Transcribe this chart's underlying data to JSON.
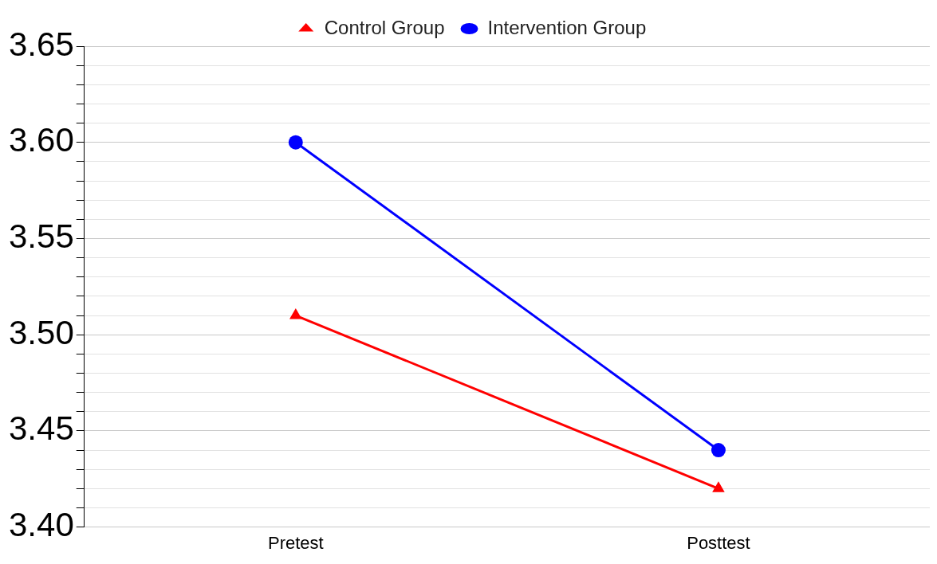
{
  "chart_data": {
    "type": "line",
    "categories": [
      "Pretest",
      "Posttest"
    ],
    "series": [
      {
        "name": "Control Group",
        "color": "#ff0000",
        "marker": "triangle",
        "values": [
          3.51,
          3.42
        ]
      },
      {
        "name": "Intervention Group",
        "color": "#0000ff",
        "marker": "circle",
        "values": [
          3.6,
          3.44
        ]
      }
    ],
    "ylim": [
      3.4,
      3.65
    ],
    "yticks": [
      {
        "value": 3.4,
        "label": "3.40"
      },
      {
        "value": 3.41,
        "label": null
      },
      {
        "value": 3.42,
        "label": null
      },
      {
        "value": 3.43,
        "label": null
      },
      {
        "value": 3.44,
        "label": null
      },
      {
        "value": 3.45,
        "label": "3.45"
      },
      {
        "value": 3.46,
        "label": null
      },
      {
        "value": 3.47,
        "label": null
      },
      {
        "value": 3.48,
        "label": null
      },
      {
        "value": 3.49,
        "label": null
      },
      {
        "value": 3.5,
        "label": "3.50"
      },
      {
        "value": 3.51,
        "label": null
      },
      {
        "value": 3.52,
        "label": null
      },
      {
        "value": 3.53,
        "label": null
      },
      {
        "value": 3.54,
        "label": null
      },
      {
        "value": 3.55,
        "label": "3.55"
      },
      {
        "value": 3.56,
        "label": null
      },
      {
        "value": 3.57,
        "label": null
      },
      {
        "value": 3.58,
        "label": null
      },
      {
        "value": 3.59,
        "label": null
      },
      {
        "value": 3.6,
        "label": "3.60"
      },
      {
        "value": 3.61,
        "label": null
      },
      {
        "value": 3.62,
        "label": null
      },
      {
        "value": 3.63,
        "label": null
      },
      {
        "value": 3.64,
        "label": null
      },
      {
        "value": 3.65,
        "label": "3.65"
      }
    ],
    "grid": "y",
    "legend": "top",
    "line_style": "solid"
  }
}
